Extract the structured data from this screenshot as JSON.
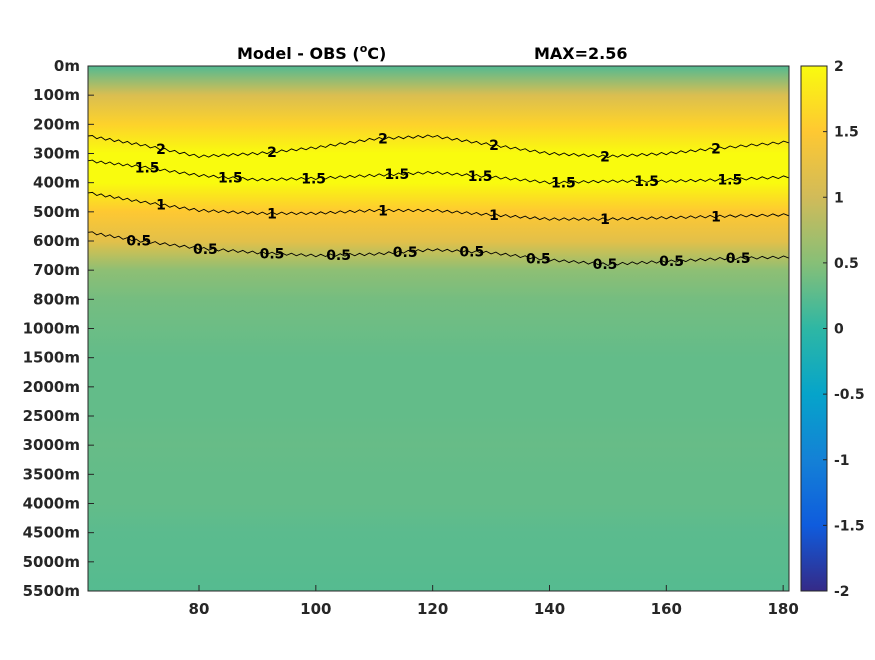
{
  "chart_data": {
    "type": "heatmap",
    "title": "Model - OBS (",
    "title_sup": "o",
    "title_unit": "C)",
    "max_label": "MAX=2.56",
    "xlabel": "",
    "ylabel": "",
    "xlim": [
      61,
      181
    ],
    "x_ticks": [
      "80",
      "100",
      "120",
      "140",
      "160",
      "180"
    ],
    "x_tick_values": [
      80,
      100,
      120,
      140,
      160,
      180
    ],
    "y_ticks": [
      "0m",
      "100m",
      "200m",
      "300m",
      "400m",
      "500m",
      "600m",
      "700m",
      "800m",
      "1000m",
      "1500m",
      "2000m",
      "2500m",
      "3000m",
      "3500m",
      "4000m",
      "4500m",
      "5000m",
      "5500m"
    ],
    "colorbar": {
      "range": [
        -2,
        2
      ],
      "ticks": [
        "2",
        "1.5",
        "1",
        "0.5",
        "0",
        "-0.5",
        "-1",
        "-1.5",
        "-2"
      ],
      "tick_values": [
        2,
        1.5,
        1,
        0.5,
        0,
        -0.5,
        -1,
        -1.5,
        -2
      ],
      "colormap": "parula"
    },
    "contour_levels": [
      0.5,
      1,
      1.5,
      2
    ],
    "depth_levels_m": [
      0,
      100,
      200,
      300,
      400,
      500,
      600,
      700,
      800,
      1000,
      1500,
      2000,
      2500,
      3000,
      3500,
      4000,
      4500,
      5000,
      5500
    ],
    "profile_values": [
      0.2,
      1.1,
      1.6,
      2.2,
      2.0,
      1.5,
      1.2,
      0.55,
      0.4,
      0.35,
      0.3,
      0.3,
      0.3,
      0.32,
      0.3,
      0.3,
      0.25,
      0.24,
      0.22
    ],
    "contours": [
      {
        "level": "0.5",
        "labels": [
          "0.5",
          "0.5",
          "0.5",
          "0.5",
          "0.5",
          "0.5",
          "0.5",
          "0.5",
          "0.5",
          "0.5"
        ],
        "x": [
          61,
          70,
          80,
          90,
          100,
          110,
          120,
          130,
          140,
          150,
          160,
          170,
          181
        ],
        "y": [
          570,
          600,
          625,
          640,
          650,
          645,
          630,
          640,
          665,
          680,
          670,
          660,
          655
        ]
      },
      {
        "level": "1",
        "labels": [
          "1",
          "1",
          "1",
          "1",
          "1",
          "1"
        ],
        "x": [
          61,
          70,
          80,
          90,
          100,
          110,
          120,
          130,
          140,
          150,
          160,
          170,
          181
        ],
        "y": [
          435,
          465,
          495,
          505,
          505,
          495,
          495,
          510,
          525,
          525,
          520,
          515,
          510
        ]
      },
      {
        "level": "1.5",
        "labels": [
          "1.5",
          "1.5",
          "1.5",
          "1.5",
          "1.5",
          "1.5",
          "1.5",
          "1.5"
        ],
        "x": [
          61,
          70,
          80,
          90,
          100,
          110,
          120,
          130,
          140,
          150,
          160,
          170,
          181
        ],
        "y": [
          325,
          345,
          375,
          390,
          385,
          375,
          365,
          380,
          400,
          395,
          395,
          390,
          380
        ]
      },
      {
        "level": "2",
        "labels": [
          "2",
          "2",
          "2",
          "2",
          "2",
          "2"
        ],
        "x": [
          61,
          70,
          80,
          90,
          100,
          110,
          120,
          130,
          140,
          150,
          160,
          170,
          181
        ],
        "y": [
          240,
          270,
          310,
          300,
          280,
          250,
          240,
          270,
          300,
          310,
          300,
          280,
          260
        ]
      }
    ]
  }
}
